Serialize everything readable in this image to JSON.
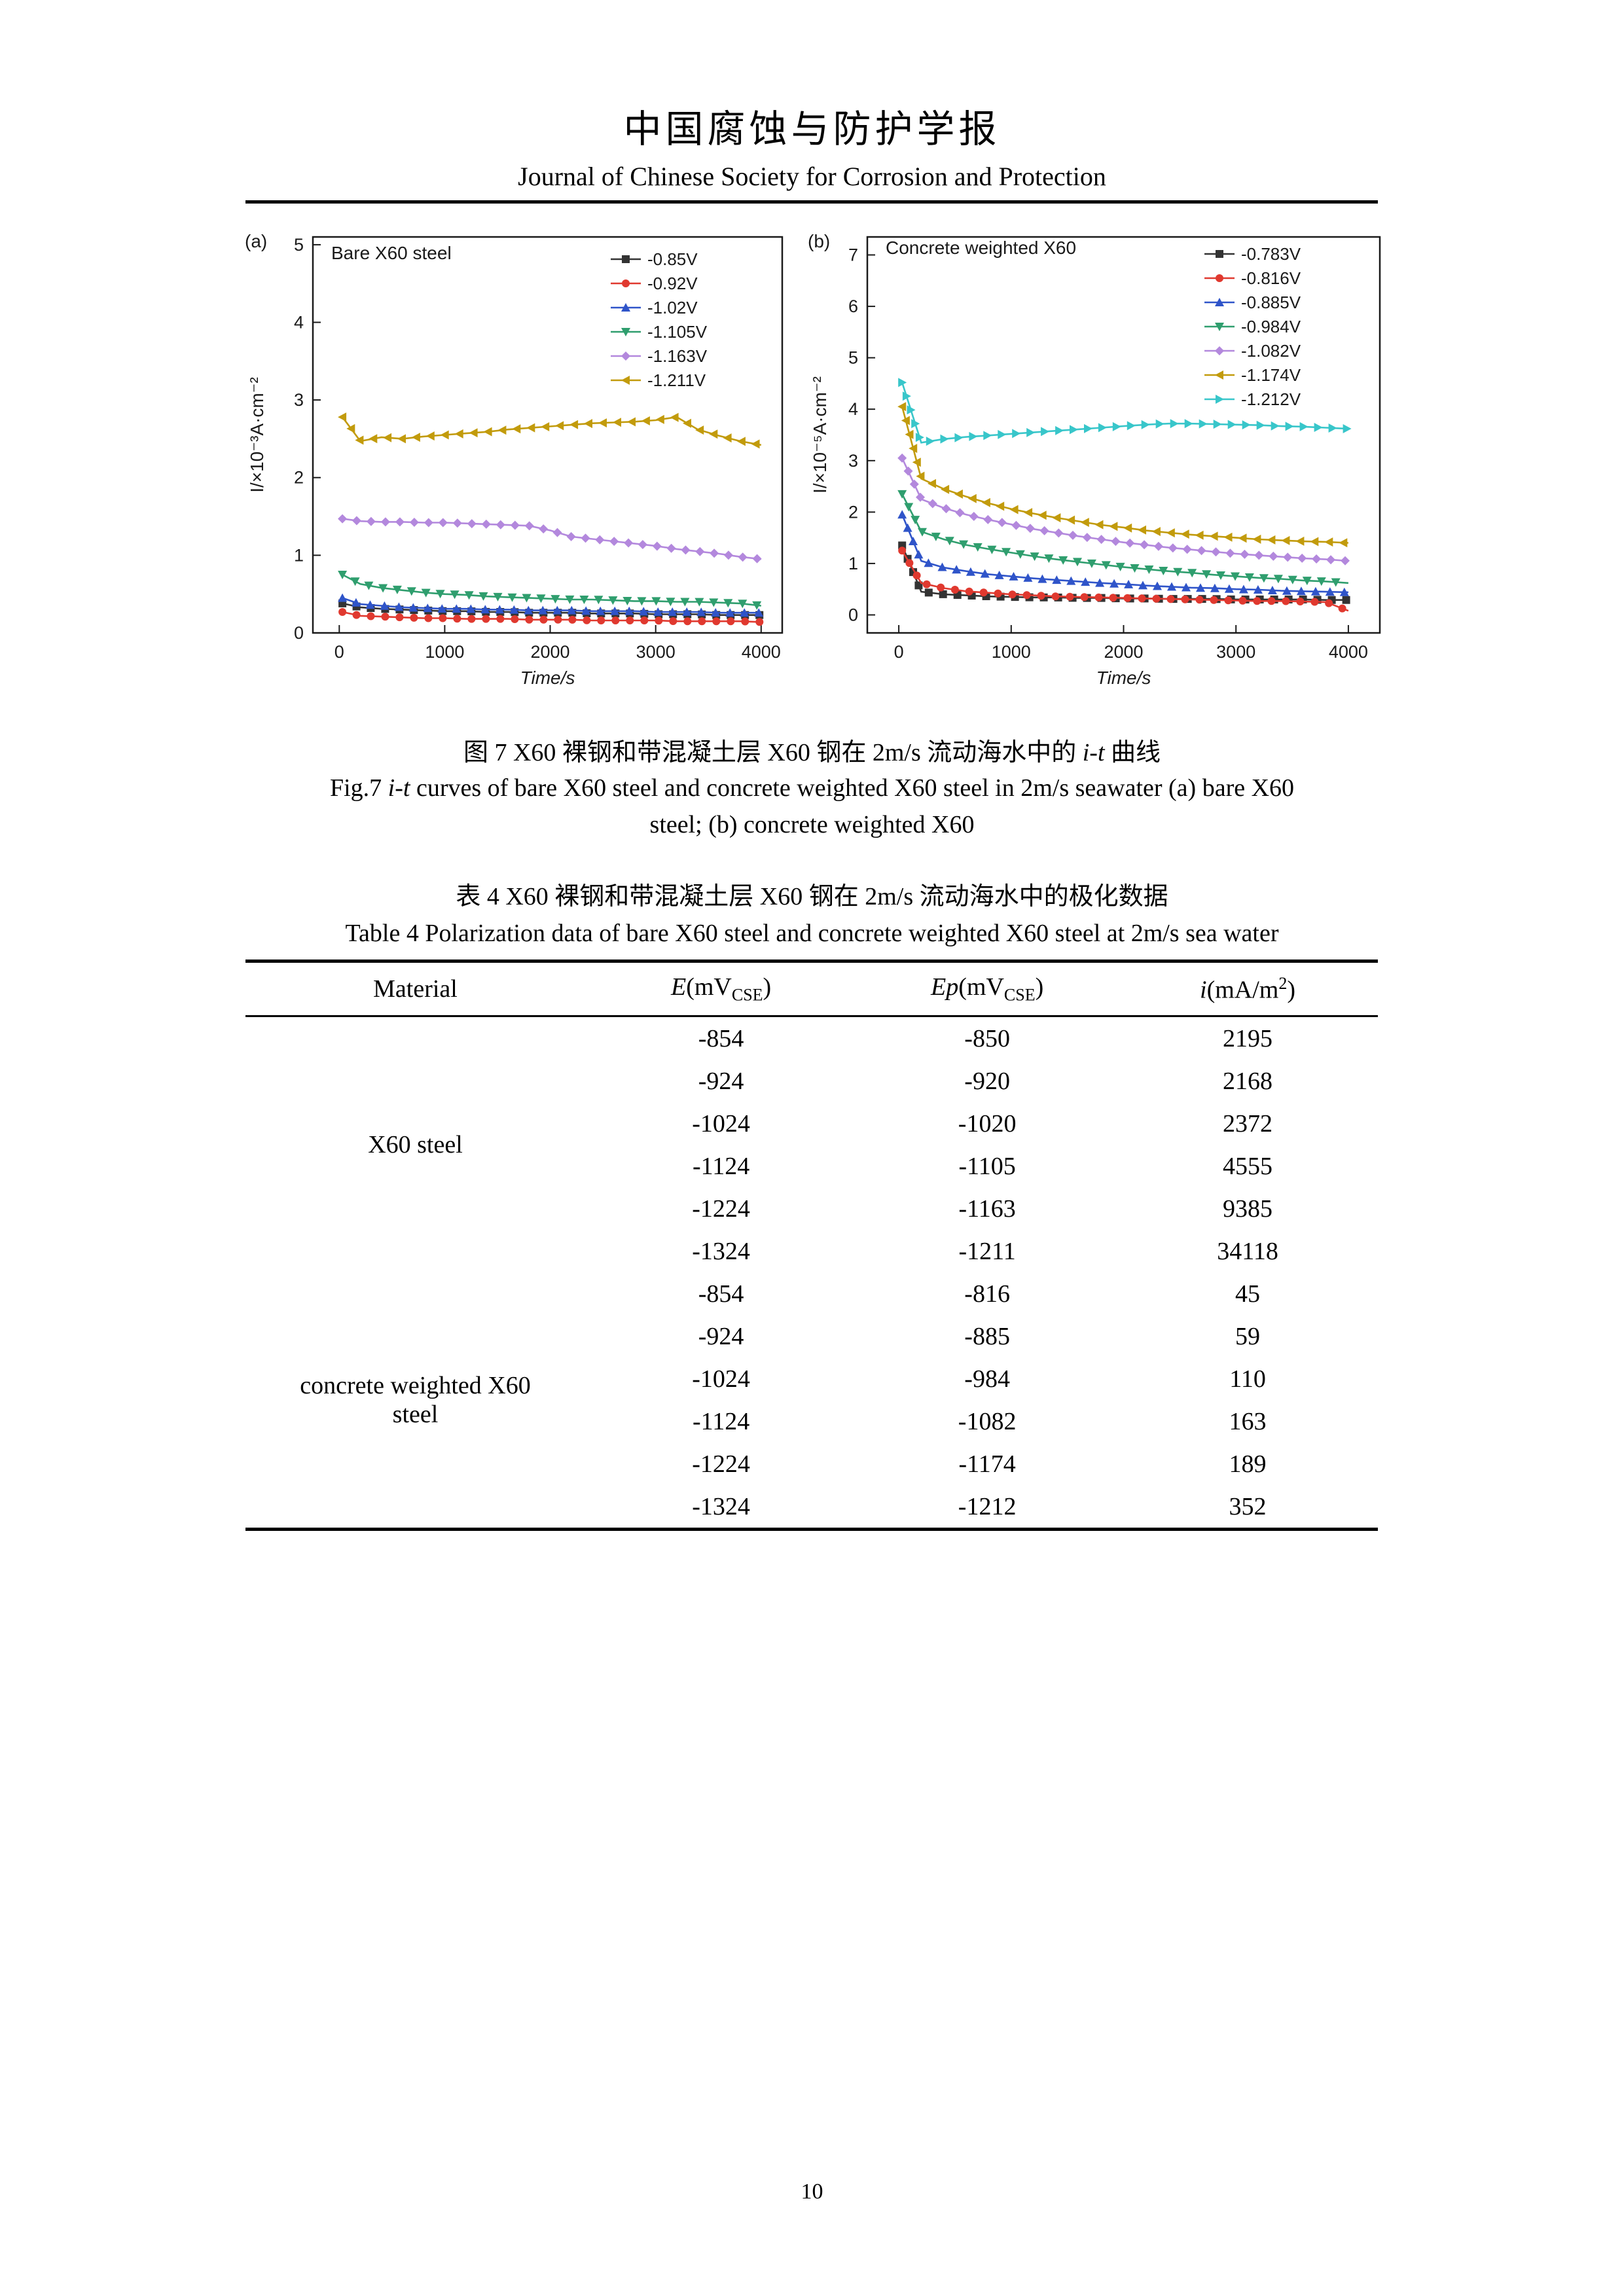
{
  "header": {
    "title_cn": "中国腐蚀与防护学报",
    "title_en": "Journal of Chinese Society for Corrosion and Protection"
  },
  "figure": {
    "caption_cn": {
      "prefix": "图 7 X60 裸钢和带混凝土层 X60 钢在 2m/s 流动海水中的 ",
      "italic": "i-t",
      "suffix": " 曲线"
    },
    "caption_en": {
      "prefix": "Fig.7 ",
      "italic": "i-t",
      "line1_rest": " curves of bare X60 steel and concrete weighted X60 steel in 2m/s seawater (a) bare X60",
      "line2": "steel; (b) concrete weighted X60"
    }
  },
  "chart_data": [
    {
      "type": "line",
      "panel": "(a)",
      "title": "Bare X60 steel",
      "xlabel": "Time/s",
      "ylabel": "I/×10⁻³A·cm⁻²",
      "xlim": [
        -250,
        4200
      ],
      "ylim": [
        0,
        5.1
      ],
      "xticks": [
        0,
        1000,
        2000,
        3000,
        4000
      ],
      "yticks": [
        0,
        1,
        2,
        3,
        4,
        5
      ],
      "legend_position": "top-right",
      "grid": false,
      "x": [
        30,
        200,
        400,
        600,
        800,
        1000,
        1200,
        1400,
        1600,
        1800,
        2000,
        2200,
        2400,
        2600,
        2800,
        3000,
        3200,
        3400,
        3600,
        3800,
        4000
      ],
      "series": [
        {
          "name": "-0.85V",
          "marker": "square",
          "color": "#333333",
          "values": [
            0.38,
            0.33,
            0.31,
            0.3,
            0.29,
            0.28,
            0.28,
            0.27,
            0.27,
            0.26,
            0.26,
            0.26,
            0.25,
            0.25,
            0.25,
            0.24,
            0.24,
            0.24,
            0.23,
            0.23,
            0.23
          ]
        },
        {
          "name": "-0.92V",
          "marker": "circle",
          "color": "#e0392f",
          "values": [
            0.27,
            0.22,
            0.21,
            0.2,
            0.19,
            0.19,
            0.18,
            0.18,
            0.18,
            0.17,
            0.17,
            0.17,
            0.16,
            0.16,
            0.16,
            0.16,
            0.15,
            0.15,
            0.15,
            0.15,
            0.14
          ]
        },
        {
          "name": "-1.02V",
          "marker": "triangle-up",
          "color": "#2f54c9",
          "values": [
            0.45,
            0.37,
            0.35,
            0.33,
            0.32,
            0.31,
            0.31,
            0.3,
            0.3,
            0.29,
            0.29,
            0.29,
            0.28,
            0.28,
            0.28,
            0.27,
            0.27,
            0.27,
            0.26,
            0.26,
            0.26
          ]
        },
        {
          "name": "-1.105V",
          "marker": "triangle-down",
          "color": "#2f9e6e",
          "values": [
            0.75,
            0.63,
            0.58,
            0.55,
            0.52,
            0.5,
            0.49,
            0.47,
            0.46,
            0.45,
            0.44,
            0.43,
            0.43,
            0.42,
            0.41,
            0.41,
            0.4,
            0.4,
            0.39,
            0.38,
            0.35
          ]
        },
        {
          "name": "-1.163V",
          "marker": "diamond",
          "color": "#b388dd",
          "values": [
            1.47,
            1.44,
            1.43,
            1.43,
            1.42,
            1.42,
            1.41,
            1.4,
            1.39,
            1.38,
            1.32,
            1.24,
            1.21,
            1.18,
            1.15,
            1.12,
            1.08,
            1.05,
            1.02,
            0.98,
            0.95
          ]
        },
        {
          "name": "-1.211V",
          "marker": "triangle-left",
          "color": "#c29b0c",
          "values": [
            2.78,
            2.47,
            2.52,
            2.5,
            2.53,
            2.55,
            2.57,
            2.59,
            2.62,
            2.64,
            2.66,
            2.68,
            2.7,
            2.71,
            2.72,
            2.74,
            2.78,
            2.62,
            2.54,
            2.47,
            2.42
          ]
        }
      ]
    },
    {
      "type": "line",
      "panel": "(b)",
      "title": "Concrete weighted X60",
      "xlabel": "Time/s",
      "ylabel": "I/×10⁻⁵A·cm⁻²",
      "xlim": [
        -280,
        4280
      ],
      "ylim": [
        -0.35,
        7.35
      ],
      "xticks": [
        0,
        1000,
        2000,
        3000,
        4000
      ],
      "yticks": [
        0,
        1,
        2,
        3,
        4,
        5,
        6,
        7
      ],
      "legend_position": "top-right",
      "grid": false,
      "x": [
        30,
        200,
        400,
        600,
        800,
        1000,
        1200,
        1400,
        1600,
        1800,
        2000,
        2200,
        2400,
        2600,
        2800,
        3000,
        3200,
        3400,
        3600,
        3800,
        4000
      ],
      "series": [
        {
          "name": "-0.783V",
          "marker": "square",
          "color": "#333333",
          "values": [
            1.35,
            0.45,
            0.4,
            0.38,
            0.36,
            0.35,
            0.34,
            0.34,
            0.33,
            0.33,
            0.32,
            0.32,
            0.31,
            0.31,
            0.31,
            0.3,
            0.3,
            0.3,
            0.3,
            0.29,
            0.29
          ]
        },
        {
          "name": "-0.816V",
          "marker": "circle",
          "color": "#e0392f",
          "values": [
            1.25,
            0.62,
            0.52,
            0.46,
            0.43,
            0.4,
            0.38,
            0.36,
            0.35,
            0.34,
            0.33,
            0.32,
            0.31,
            0.3,
            0.29,
            0.28,
            0.27,
            0.27,
            0.26,
            0.25,
            0.08
          ]
        },
        {
          "name": "-0.885V",
          "marker": "triangle-up",
          "color": "#2f54c9",
          "values": [
            1.95,
            1.05,
            0.92,
            0.85,
            0.79,
            0.75,
            0.71,
            0.68,
            0.65,
            0.62,
            0.6,
            0.57,
            0.55,
            0.53,
            0.52,
            0.5,
            0.49,
            0.47,
            0.46,
            0.45,
            0.44
          ]
        },
        {
          "name": "-0.984V",
          "marker": "triangle-down",
          "color": "#2f9e6e",
          "values": [
            2.35,
            1.62,
            1.47,
            1.36,
            1.28,
            1.21,
            1.14,
            1.08,
            1.03,
            0.98,
            0.93,
            0.89,
            0.85,
            0.82,
            0.78,
            0.75,
            0.72,
            0.7,
            0.67,
            0.65,
            0.62
          ]
        },
        {
          "name": "-1.082V",
          "marker": "diamond",
          "color": "#b388dd",
          "values": [
            3.05,
            2.25,
            2.08,
            1.95,
            1.85,
            1.76,
            1.67,
            1.6,
            1.53,
            1.47,
            1.41,
            1.36,
            1.31,
            1.27,
            1.23,
            1.19,
            1.16,
            1.13,
            1.1,
            1.08,
            1.05
          ]
        },
        {
          "name": "-1.174V",
          "marker": "triangle-left",
          "color": "#c29b0c",
          "values": [
            4.05,
            2.65,
            2.45,
            2.3,
            2.17,
            2.06,
            1.97,
            1.89,
            1.82,
            1.75,
            1.7,
            1.64,
            1.6,
            1.56,
            1.53,
            1.5,
            1.47,
            1.45,
            1.43,
            1.42,
            1.4
          ]
        },
        {
          "name": "-1.212V",
          "marker": "triangle-right",
          "color": "#38c6ca",
          "values": [
            4.52,
            3.35,
            3.42,
            3.46,
            3.49,
            3.52,
            3.55,
            3.58,
            3.61,
            3.64,
            3.67,
            3.7,
            3.72,
            3.72,
            3.71,
            3.7,
            3.69,
            3.67,
            3.66,
            3.64,
            3.62
          ]
        }
      ]
    }
  ],
  "table": {
    "caption_cn": "表 4 X60 裸钢和带混凝土层 X60 钢在 2m/s 流动海水中的极化数据",
    "caption_en": "Table 4 Polarization data of bare X60 steel and concrete weighted X60 steel at 2m/s sea water",
    "headers": {
      "material": "Material",
      "e_symbol": "E",
      "ep_symbol": "Ep",
      "mv_open": "(mV",
      "mv_sub": "CSE",
      "mv_close": ")",
      "i_symbol": "i",
      "i_open": "(mA/m",
      "i_sup": "2",
      "i_close": ")"
    },
    "groups": [
      {
        "material_lines": [
          "X60 steel"
        ],
        "rows": [
          [
            "-854",
            "-850",
            "2195"
          ],
          [
            "-924",
            "-920",
            "2168"
          ],
          [
            "-1024",
            "-1020",
            "2372"
          ],
          [
            "-1124",
            "-1105",
            "4555"
          ],
          [
            "-1224",
            "-1163",
            "9385"
          ],
          [
            "-1324",
            "-1211",
            "34118"
          ]
        ]
      },
      {
        "material_lines": [
          "concrete weighted X60",
          "steel"
        ],
        "rows": [
          [
            "-854",
            "-816",
            "45"
          ],
          [
            "-924",
            "-885",
            "59"
          ],
          [
            "-1024",
            "-984",
            "110"
          ],
          [
            "-1124",
            "-1082",
            "163"
          ],
          [
            "-1224",
            "-1174",
            "189"
          ],
          [
            "-1324",
            "-1212",
            "352"
          ]
        ]
      }
    ]
  },
  "page_number": "10"
}
